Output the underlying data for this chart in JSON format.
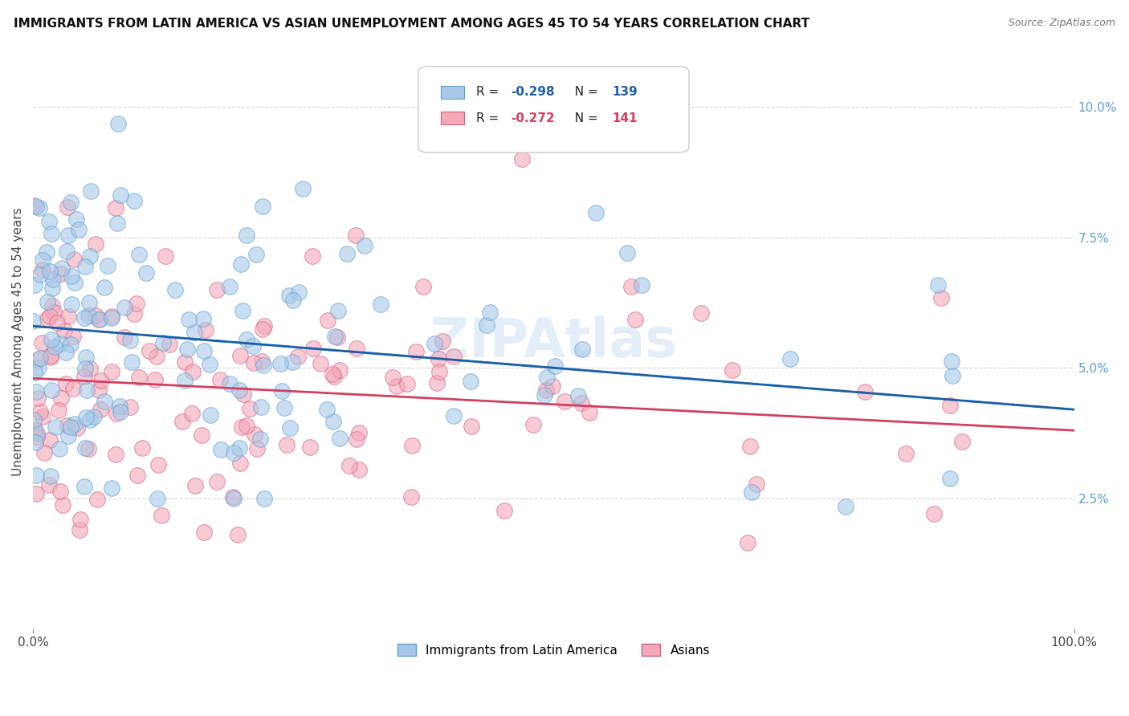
{
  "title": "IMMIGRANTS FROM LATIN AMERICA VS ASIAN UNEMPLOYMENT AMONG AGES 45 TO 54 YEARS CORRELATION CHART",
  "source": "Source: ZipAtlas.com",
  "ylabel": "Unemployment Among Ages 45 to 54 years",
  "xlim": [
    0.0,
    1.0
  ],
  "ylim": [
    0.0,
    0.11
  ],
  "legend_labels": [
    "Immigrants from Latin America",
    "Asians"
  ],
  "blue_color": "#a8c8e8",
  "blue_edge_color": "#5a9fd4",
  "pink_color": "#f4a8b8",
  "pink_edge_color": "#d06080",
  "blue_line_color": "#1a5fa8",
  "pink_line_color": "#d04060",
  "watermark": "ZIPAtlas",
  "blue_n": 139,
  "pink_n": 141,
  "blue_intercept": 0.058,
  "blue_slope": -0.016,
  "pink_intercept": 0.048,
  "pink_slope": -0.01,
  "grid_color": "#d0d0d0",
  "background_color": "#ffffff",
  "title_fontsize": 11,
  "axis_label_fontsize": 11,
  "tick_fontsize": 11,
  "legend_fontsize": 11
}
